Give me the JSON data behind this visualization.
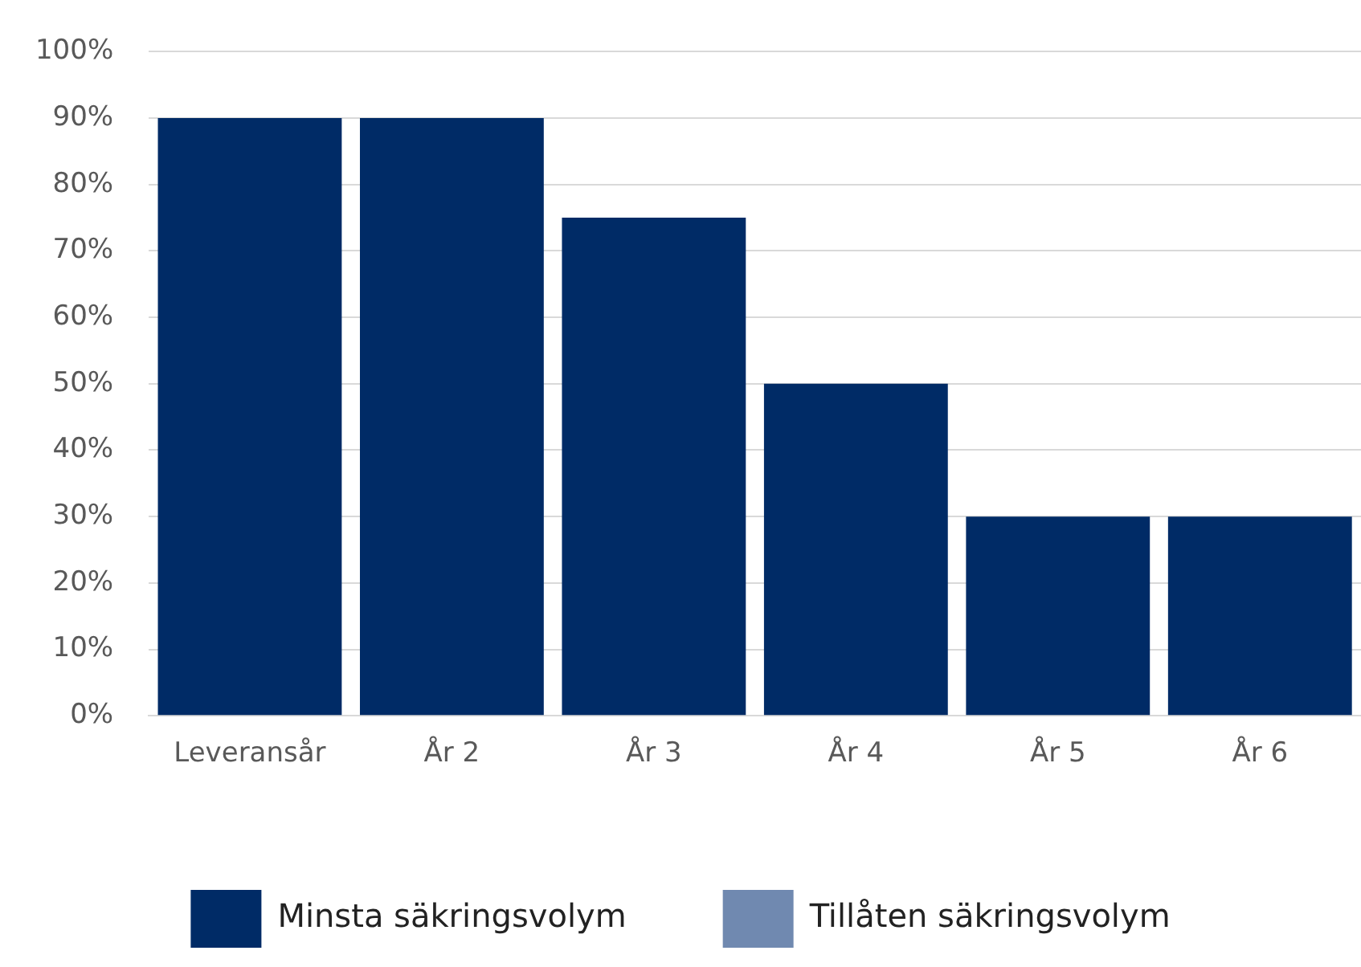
{
  "chart_data": {
    "type": "bar",
    "stacked": true,
    "categories": [
      "Leveransår",
      "År 2",
      "År 3",
      "År 4",
      "År 5",
      "År 6"
    ],
    "series": [
      {
        "name": "Minsta säkringsvolym",
        "color": "#002b66",
        "values": [
          90,
          90,
          75,
          50,
          30,
          30
        ]
      },
      {
        "name": "Tillåten säkringsvolym",
        "color": "#7089b0",
        "values": [
          0,
          0,
          0,
          0,
          0,
          0
        ]
      }
    ],
    "ylim": [
      0,
      100
    ],
    "yticks": [
      {
        "value": 0,
        "label": "0%"
      },
      {
        "value": 10,
        "label": "10%"
      },
      {
        "value": 20,
        "label": "20%"
      },
      {
        "value": 30,
        "label": "30%"
      },
      {
        "value": 40,
        "label": "40%"
      },
      {
        "value": 50,
        "label": "50%"
      },
      {
        "value": 60,
        "label": "60%"
      },
      {
        "value": 70,
        "label": "70%"
      },
      {
        "value": 80,
        "label": "80%"
      },
      {
        "value": 90,
        "label": "90%"
      },
      {
        "value": 100,
        "label": "100%"
      }
    ],
    "grid": "y",
    "legend": "bottom"
  }
}
